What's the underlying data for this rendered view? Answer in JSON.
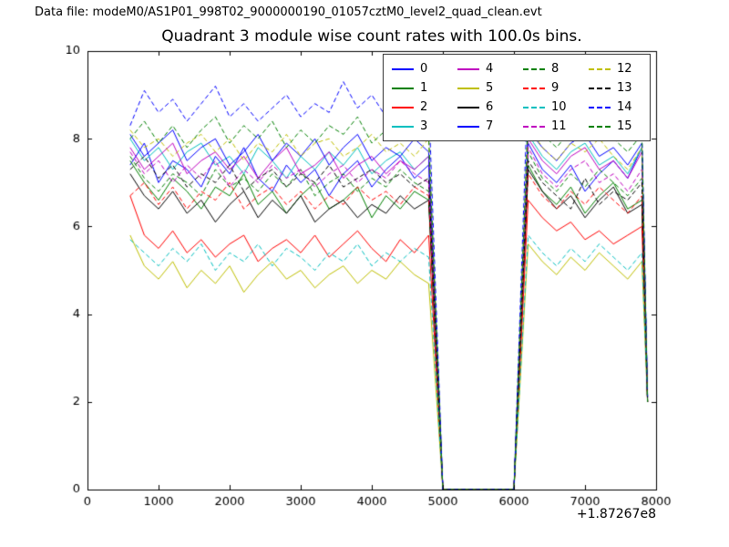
{
  "header": {
    "text": "Data file: modeM0/AS1P01_998T02_9000000190_01057cztM0_level2_quad_clean.evt"
  },
  "chart_data": {
    "type": "line",
    "title": "Quadrant 3 module wise count rates with 100.0s bins.",
    "xlabel": "",
    "ylabel": "",
    "x_offset_label": "+1.87267e8",
    "xlim": [
      0,
      8000
    ],
    "ylim": [
      0,
      10
    ],
    "x_ticks": [
      "0",
      "1000",
      "2000",
      "3000",
      "4000",
      "5000",
      "6000",
      "7000",
      "8000"
    ],
    "x_tick_values": [
      0,
      1000,
      2000,
      3000,
      4000,
      5000,
      6000,
      7000,
      8000
    ],
    "y_ticks": [
      "0",
      "2",
      "4",
      "6",
      "8",
      "10"
    ],
    "y_tick_values": [
      0,
      2,
      4,
      6,
      8,
      10
    ],
    "grid": false,
    "legend_position": "upper right",
    "legend_columns": 4,
    "x": [
      600,
      800,
      1000,
      1200,
      1400,
      1600,
      1800,
      2000,
      2200,
      2400,
      2600,
      2800,
      3000,
      3200,
      3400,
      3600,
      3800,
      4000,
      4200,
      4400,
      4600,
      4800,
      5000,
      5200,
      5400,
      5600,
      5800,
      6000,
      6200,
      6400,
      6600,
      6800,
      7000,
      7200,
      7400,
      7600,
      7800,
      7880
    ],
    "series": [
      {
        "name": "0",
        "color": "#0000ff",
        "dash": false,
        "values": [
          7.4,
          7.9,
          7.0,
          7.5,
          7.3,
          6.9,
          7.6,
          7.2,
          7.8,
          7.1,
          6.8,
          7.4,
          7.0,
          7.3,
          6.7,
          7.2,
          7.5,
          6.9,
          7.3,
          7.6,
          7.1,
          7.4,
          0,
          0,
          0,
          0,
          0,
          0,
          7.9,
          7.3,
          7.0,
          7.4,
          6.8,
          7.2,
          7.5,
          7.1,
          7.8,
          2.1
        ]
      },
      {
        "name": "1",
        "color": "#008000",
        "dash": false,
        "values": [
          7.5,
          7.0,
          6.6,
          7.1,
          6.8,
          6.4,
          6.9,
          6.7,
          7.2,
          6.5,
          6.8,
          6.3,
          6.7,
          7.0,
          6.4,
          6.6,
          6.9,
          6.2,
          6.7,
          6.4,
          6.8,
          6.6,
          0,
          0,
          0,
          0,
          0,
          0,
          7.4,
          6.8,
          6.5,
          6.9,
          6.3,
          6.7,
          7.0,
          6.4,
          6.6,
          2.0
        ]
      },
      {
        "name": "2",
        "color": "#ff0000",
        "dash": false,
        "values": [
          6.7,
          5.8,
          5.5,
          5.9,
          5.4,
          5.7,
          5.3,
          5.6,
          5.8,
          5.2,
          5.5,
          5.7,
          5.4,
          5.8,
          5.3,
          5.6,
          5.9,
          5.5,
          5.2,
          5.7,
          5.4,
          5.8,
          0,
          0,
          0,
          0,
          0,
          0,
          6.6,
          6.2,
          5.9,
          6.1,
          5.7,
          5.9,
          5.6,
          5.8,
          6.0,
          2.0
        ]
      },
      {
        "name": "3",
        "color": "#00bfbf",
        "dash": false,
        "values": [
          8.0,
          7.5,
          7.8,
          7.3,
          7.7,
          7.9,
          7.4,
          7.6,
          7.2,
          7.8,
          7.5,
          7.1,
          7.6,
          7.3,
          7.7,
          7.4,
          7.8,
          7.2,
          7.5,
          7.7,
          7.3,
          7.6,
          0,
          0,
          0,
          0,
          0,
          0,
          8.1,
          7.6,
          7.3,
          7.7,
          7.9,
          7.4,
          7.6,
          7.2,
          7.8,
          2.1
        ]
      },
      {
        "name": "4",
        "color": "#bf00bf",
        "dash": false,
        "values": [
          7.8,
          7.3,
          7.6,
          7.9,
          7.2,
          7.5,
          7.7,
          7.3,
          7.6,
          7.1,
          7.5,
          7.8,
          7.2,
          7.4,
          7.7,
          7.1,
          7.4,
          7.6,
          7.2,
          7.5,
          7.3,
          7.6,
          0,
          0,
          0,
          0,
          0,
          0,
          8.0,
          7.5,
          7.2,
          7.6,
          7.8,
          7.3,
          7.5,
          7.1,
          7.7,
          2.0
        ]
      },
      {
        "name": "5",
        "color": "#bfbf00",
        "dash": false,
        "values": [
          5.8,
          5.1,
          4.8,
          5.2,
          4.6,
          5.0,
          4.7,
          5.1,
          4.5,
          4.9,
          5.2,
          4.8,
          5.0,
          4.6,
          4.9,
          5.1,
          4.7,
          5.0,
          4.8,
          5.2,
          4.9,
          4.7,
          0,
          0,
          0,
          0,
          0,
          0,
          5.6,
          5.2,
          4.9,
          5.3,
          5.0,
          5.4,
          5.1,
          4.8,
          5.2,
          2.0
        ]
      },
      {
        "name": "6",
        "color": "#000000",
        "dash": false,
        "values": [
          7.2,
          6.7,
          6.4,
          6.8,
          6.3,
          6.6,
          6.1,
          6.5,
          6.8,
          6.2,
          6.6,
          6.3,
          6.7,
          6.1,
          6.4,
          6.6,
          6.2,
          6.5,
          6.3,
          6.7,
          6.4,
          6.6,
          0,
          0,
          0,
          0,
          0,
          0,
          7.3,
          6.8,
          6.4,
          6.7,
          6.2,
          6.6,
          6.9,
          6.3,
          6.5,
          2.0
        ]
      },
      {
        "name": "7",
        "color": "#0000ff",
        "dash": false,
        "values": [
          8.1,
          7.6,
          7.9,
          8.2,
          7.5,
          7.8,
          8.0,
          7.4,
          7.7,
          8.1,
          7.5,
          7.9,
          7.6,
          8.0,
          7.4,
          7.8,
          8.1,
          7.5,
          7.8,
          7.6,
          8.0,
          7.7,
          0,
          0,
          0,
          0,
          0,
          0,
          8.2,
          7.8,
          7.5,
          7.9,
          8.1,
          7.6,
          7.8,
          7.4,
          7.9,
          2.1
        ]
      },
      {
        "name": "8",
        "color": "#008000",
        "dash": true,
        "values": [
          7.6,
          7.1,
          6.8,
          7.2,
          7.0,
          6.7,
          7.3,
          6.9,
          7.1,
          6.8,
          7.2,
          6.9,
          7.3,
          6.7,
          7.0,
          7.2,
          6.8,
          7.1,
          6.9,
          7.3,
          7.0,
          6.8,
          0,
          0,
          0,
          0,
          0,
          0,
          7.7,
          7.1,
          6.8,
          7.2,
          6.9,
          7.3,
          7.0,
          6.7,
          7.1,
          2.0
        ]
      },
      {
        "name": "9",
        "color": "#ff0000",
        "dash": true,
        "values": [
          6.7,
          7.0,
          6.5,
          6.9,
          6.4,
          6.8,
          6.6,
          7.0,
          6.4,
          6.7,
          6.9,
          6.5,
          6.8,
          6.4,
          6.7,
          6.5,
          6.9,
          6.6,
          6.8,
          6.5,
          6.9,
          6.7,
          0,
          0,
          0,
          0,
          0,
          0,
          7.2,
          6.7,
          6.4,
          6.8,
          6.5,
          6.9,
          6.6,
          6.3,
          6.7,
          2.0
        ]
      },
      {
        "name": "10",
        "color": "#00bfbf",
        "dash": true,
        "values": [
          5.7,
          5.4,
          5.1,
          5.5,
          5.2,
          5.6,
          5.0,
          5.4,
          5.2,
          5.6,
          5.1,
          5.5,
          5.3,
          5.0,
          5.4,
          5.2,
          5.6,
          5.1,
          5.4,
          5.2,
          5.5,
          5.3,
          0,
          0,
          0,
          0,
          0,
          0,
          5.8,
          5.4,
          5.1,
          5.5,
          5.2,
          5.6,
          5.3,
          5.0,
          5.4,
          2.0
        ]
      },
      {
        "name": "11",
        "color": "#bf00bf",
        "dash": true,
        "values": [
          7.7,
          7.2,
          7.5,
          7.0,
          7.4,
          7.1,
          7.5,
          6.9,
          7.3,
          7.0,
          7.4,
          7.1,
          7.3,
          6.9,
          7.2,
          7.4,
          7.0,
          7.3,
          7.1,
          7.5,
          7.2,
          7.0,
          0,
          0,
          0,
          0,
          0,
          0,
          7.8,
          7.2,
          6.9,
          7.3,
          7.5,
          7.0,
          7.2,
          6.8,
          7.3,
          2.0
        ]
      },
      {
        "name": "12",
        "color": "#bfbf00",
        "dash": true,
        "values": [
          8.2,
          7.8,
          8.0,
          7.6,
          7.9,
          8.1,
          7.7,
          8.0,
          7.5,
          7.9,
          7.7,
          8.1,
          7.6,
          7.9,
          8.0,
          7.6,
          7.8,
          8.1,
          7.7,
          7.9,
          7.6,
          8.0,
          0,
          0,
          0,
          0,
          0,
          0,
          8.3,
          7.8,
          7.5,
          7.9,
          7.7,
          8.0,
          7.6,
          7.3,
          7.8,
          2.1
        ]
      },
      {
        "name": "13",
        "color": "#000000",
        "dash": true,
        "values": [
          7.3,
          7.6,
          7.1,
          7.4,
          6.9,
          7.2,
          7.0,
          7.4,
          6.8,
          7.1,
          7.3,
          6.9,
          7.2,
          7.0,
          7.4,
          6.9,
          7.1,
          7.3,
          7.0,
          7.2,
          6.9,
          7.1,
          0,
          0,
          0,
          0,
          0,
          0,
          7.5,
          7.0,
          6.7,
          6.4,
          7.1,
          6.5,
          6.8,
          6.6,
          7.0,
          2.0
        ]
      },
      {
        "name": "14",
        "color": "#0000ff",
        "dash": true,
        "values": [
          8.3,
          9.1,
          8.6,
          8.9,
          8.4,
          8.8,
          9.2,
          8.5,
          8.8,
          8.4,
          8.7,
          9.0,
          8.5,
          8.8,
          8.6,
          9.3,
          8.7,
          9.0,
          8.5,
          8.8,
          8.6,
          8.9,
          0,
          0,
          0,
          0,
          0,
          0,
          9.4,
          8.8,
          8.5,
          8.9,
          9.1,
          8.6,
          9.5,
          8.7,
          8.2,
          2.1
        ]
      },
      {
        "name": "15",
        "color": "#008000",
        "dash": true,
        "values": [
          8.0,
          8.4,
          7.9,
          8.3,
          7.8,
          8.2,
          8.5,
          7.9,
          8.3,
          8.0,
          8.4,
          7.8,
          8.2,
          7.9,
          8.3,
          8.1,
          8.5,
          7.9,
          8.2,
          8.0,
          8.4,
          8.1,
          0,
          0,
          0,
          0,
          0,
          0,
          8.6,
          8.1,
          7.8,
          8.2,
          9.6,
          8.3,
          8.0,
          7.7,
          8.1,
          2.0
        ]
      }
    ]
  }
}
